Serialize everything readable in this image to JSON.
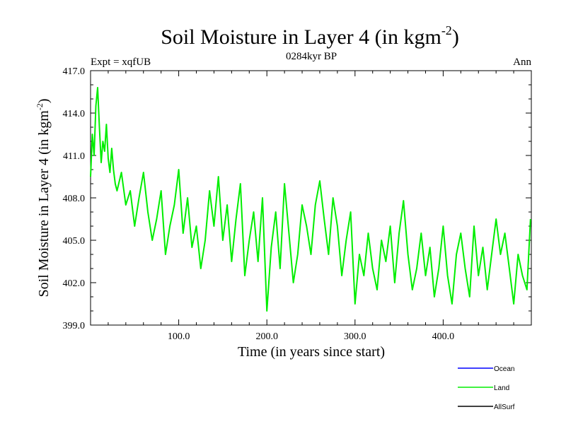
{
  "chart_data": {
    "type": "line",
    "title": "Soil Moisture in Layer 4 (in kgm",
    "title_sup": "-2",
    "title_tail": ")",
    "subtitle_left": "Expt = xqfUB",
    "subtitle_center": "0284kyr BP",
    "subtitle_right": "Ann",
    "xlabel": "Time (in years since start)",
    "ylabel": "Soil Moisture in Layer 4 (in kgm",
    "ylabel_sup": "-2",
    "ylabel_tail": ")",
    "xlim": [
      0,
      500
    ],
    "ylim": [
      399,
      417
    ],
    "x_ticks": [
      100,
      200,
      300,
      400
    ],
    "x_tick_labels": [
      "100.0",
      "200.0",
      "300.0",
      "400.0"
    ],
    "y_ticks": [
      399,
      402,
      405,
      408,
      411,
      414,
      417
    ],
    "y_tick_labels": [
      "399.0",
      "402.0",
      "405.0",
      "408.0",
      "411.0",
      "414.0",
      "417.0"
    ],
    "legend": [
      {
        "name": "Ocean",
        "color": "#0000ff"
      },
      {
        "name": "Land",
        "color": "#00ee00"
      },
      {
        "name": "AllSurf",
        "color": "#000000"
      }
    ],
    "series": [
      {
        "name": "Land",
        "color": "#00ee00",
        "x": [
          0,
          2,
          4,
          6,
          8,
          10,
          12,
          14,
          16,
          18,
          20,
          22,
          24,
          26,
          28,
          30,
          35,
          40,
          45,
          50,
          55,
          60,
          65,
          70,
          75,
          80,
          85,
          90,
          95,
          100,
          105,
          110,
          115,
          120,
          125,
          130,
          135,
          140,
          145,
          150,
          155,
          160,
          165,
          170,
          175,
          180,
          185,
          190,
          195,
          200,
          205,
          210,
          215,
          220,
          225,
          230,
          235,
          240,
          245,
          250,
          255,
          260,
          265,
          270,
          275,
          280,
          285,
          290,
          295,
          300,
          305,
          310,
          315,
          320,
          325,
          330,
          335,
          340,
          345,
          350,
          355,
          360,
          365,
          370,
          375,
          380,
          385,
          390,
          395,
          400,
          405,
          410,
          415,
          420,
          425,
          430,
          435,
          440,
          445,
          450,
          455,
          460,
          465,
          470,
          475,
          480,
          485,
          490,
          495,
          499
        ],
        "values": [
          409.5,
          412.5,
          411.0,
          414.5,
          415.8,
          413.0,
          410.5,
          412.0,
          411.3,
          413.2,
          410.8,
          409.8,
          411.5,
          410.0,
          409.0,
          408.5,
          409.8,
          407.5,
          408.5,
          406.0,
          408.0,
          409.8,
          407.0,
          405.0,
          406.5,
          408.5,
          404.0,
          406.0,
          407.5,
          410.0,
          405.5,
          408.0,
          404.5,
          406.0,
          403.0,
          405.0,
          408.5,
          406.0,
          409.5,
          405.0,
          407.5,
          403.5,
          406.5,
          409.0,
          402.5,
          405.0,
          407.0,
          403.5,
          408.0,
          400.0,
          404.5,
          407.0,
          403.0,
          409.0,
          405.5,
          402.0,
          404.0,
          407.5,
          406.0,
          404.0,
          407.5,
          409.2,
          406.5,
          404.0,
          408.0,
          406.0,
          402.5,
          405.0,
          407.0,
          400.5,
          404.0,
          402.5,
          405.5,
          403.0,
          401.5,
          405.0,
          403.5,
          406.0,
          402.0,
          405.5,
          407.8,
          404.0,
          401.5,
          403.0,
          405.5,
          402.5,
          404.5,
          401.0,
          403.0,
          406.0,
          402.5,
          400.5,
          404.0,
          405.5,
          403.0,
          401.0,
          406.0,
          402.5,
          404.5,
          401.5,
          404.0,
          406.5,
          404.0,
          405.5,
          403.0,
          400.5,
          404.0,
          402.5,
          401.5,
          406.5
        ]
      },
      {
        "name": "Ocean",
        "color": "#0000ff",
        "x": [],
        "values": []
      },
      {
        "name": "AllSurf",
        "color": "#000000",
        "x": [],
        "values": []
      }
    ]
  }
}
